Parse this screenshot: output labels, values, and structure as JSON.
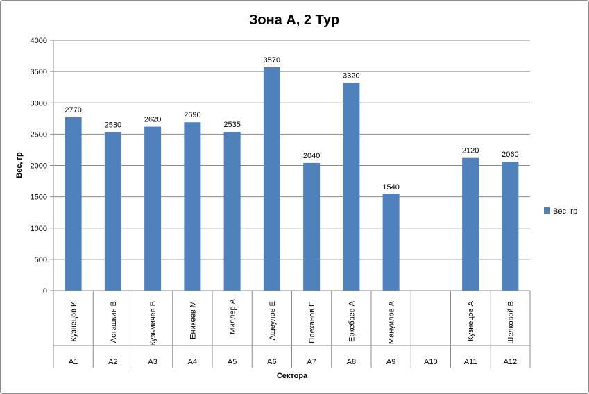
{
  "chart_data": {
    "type": "bar",
    "title": "Зона А, 2 Тур",
    "xlabel": "Сектора",
    "ylabel": "Вес, гр",
    "ylim": [
      0,
      4000
    ],
    "yticks": [
      0,
      500,
      1000,
      1500,
      2000,
      2500,
      3000,
      3500,
      4000
    ],
    "grid": true,
    "legend_position": "right",
    "bar_color": "#4F81BD",
    "categories": [
      {
        "name": "Кузнецов И.",
        "sector": "А1"
      },
      {
        "name": "Асташкин В.",
        "sector": "А2"
      },
      {
        "name": "Кузьмичев В.",
        "sector": "А3"
      },
      {
        "name": "Еникеев М.",
        "sector": "А4"
      },
      {
        "name": "Миллер А",
        "sector": "А5"
      },
      {
        "name": "Ащеулов Е.",
        "sector": "А6"
      },
      {
        "name": "Плеханов П.",
        "sector": "А7"
      },
      {
        "name": "Еркебаев А.",
        "sector": "А8"
      },
      {
        "name": "Мануилов А.",
        "sector": "А9"
      },
      {
        "name": "",
        "sector": "А10"
      },
      {
        "name": "Кузнецов А.",
        "sector": "А11"
      },
      {
        "name": "Шелковой В.",
        "sector": "А12"
      }
    ],
    "series": [
      {
        "name": "Вес, гр",
        "values": [
          2770,
          2530,
          2620,
          2690,
          2535,
          3570,
          2040,
          3320,
          1540,
          null,
          2120,
          2060
        ]
      }
    ]
  }
}
